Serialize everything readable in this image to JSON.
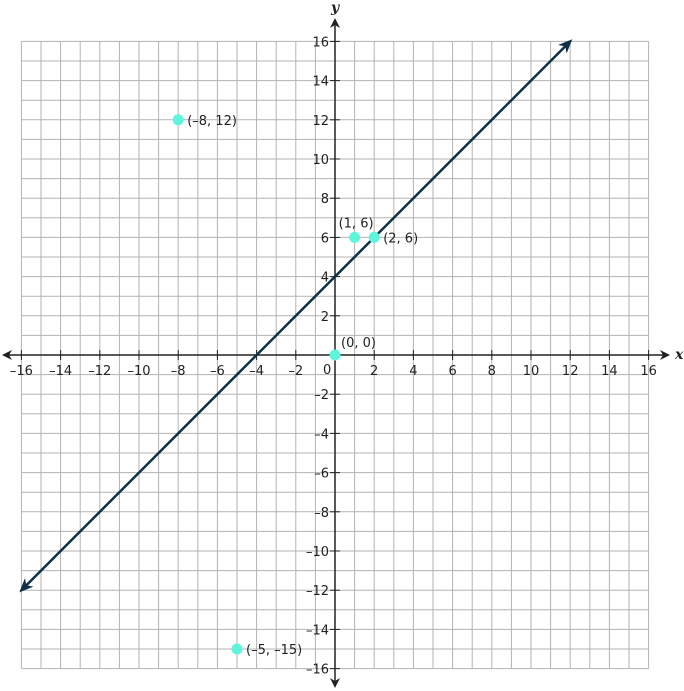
{
  "chart_data": {
    "type": "scatter",
    "xlabel": "x",
    "ylabel": "y",
    "xlim": [
      -16,
      16
    ],
    "ylim": [
      -16,
      16
    ],
    "grid": true,
    "x_ticks": [
      -16,
      -14,
      -12,
      -10,
      -8,
      -6,
      -4,
      -2,
      2,
      4,
      6,
      8,
      10,
      12,
      14,
      16
    ],
    "y_ticks": [
      -16,
      -14,
      -12,
      -10,
      -8,
      -6,
      -4,
      -2,
      2,
      4,
      6,
      8,
      10,
      12,
      14,
      16
    ],
    "origin_label": "0",
    "line": {
      "equation": "y = x + 4",
      "from": [
        -16,
        -12
      ],
      "to": [
        12,
        16
      ],
      "arrows": "both"
    },
    "points": [
      {
        "x": -8,
        "y": 12,
        "label": "(–8, 12)"
      },
      {
        "x": 1,
        "y": 6,
        "label": "(1, 6)"
      },
      {
        "x": 2,
        "y": 6,
        "label": "(2, 6)"
      },
      {
        "x": 0,
        "y": 0,
        "label": "(0, 0)"
      },
      {
        "x": -5,
        "y": -15,
        "label": "(–5, –15)"
      }
    ],
    "colors": {
      "line": "#0f3047",
      "points": "#5ff5dc",
      "grid": "#b3b3b3",
      "axis": "#222222"
    }
  }
}
